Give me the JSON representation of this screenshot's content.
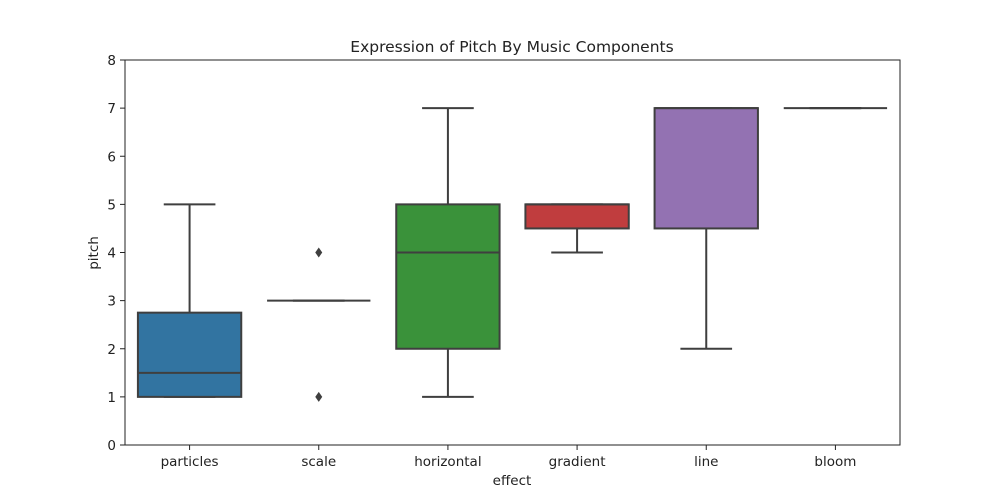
{
  "chart_data": {
    "type": "box",
    "title": "Expression of Pitch By Music Components",
    "xlabel": "effect",
    "ylabel": "pitch",
    "ylim": [
      0,
      8
    ],
    "yticks": [
      "0",
      "1",
      "2",
      "3",
      "4",
      "5",
      "6",
      "7",
      "8"
    ],
    "grid": false,
    "categories": [
      "particles",
      "scale",
      "horizontal",
      "gradient",
      "line",
      "bloom"
    ],
    "boxes": [
      {
        "category": "particles",
        "whisker_low": 1,
        "q1": 1,
        "median": 1.5,
        "q3": 2.75,
        "whisker_high": 5,
        "outliers": [],
        "color": "#3274a1"
      },
      {
        "category": "scale",
        "whisker_low": 3,
        "q1": 3,
        "median": 3,
        "q3": 3,
        "whisker_high": 3,
        "outliers": [
          1,
          4
        ],
        "color": "#e1812c"
      },
      {
        "category": "horizontal",
        "whisker_low": 1,
        "q1": 2,
        "median": 4,
        "q3": 5,
        "whisker_high": 7,
        "outliers": [],
        "color": "#3a923a"
      },
      {
        "category": "gradient",
        "whisker_low": 4,
        "q1": 4.5,
        "median": 5,
        "q3": 5,
        "whisker_high": 5,
        "outliers": [],
        "color": "#c03d3e"
      },
      {
        "category": "line",
        "whisker_low": 2,
        "q1": 4.5,
        "median": 7,
        "q3": 7,
        "whisker_high": 7,
        "outliers": [],
        "color": "#9372b2"
      },
      {
        "category": "bloom",
        "whisker_low": 7,
        "q1": 7,
        "median": 7,
        "q3": 7,
        "whisker_high": 7,
        "outliers": [],
        "color": "#845b53"
      }
    ],
    "line_color": "#3f3f3f"
  }
}
